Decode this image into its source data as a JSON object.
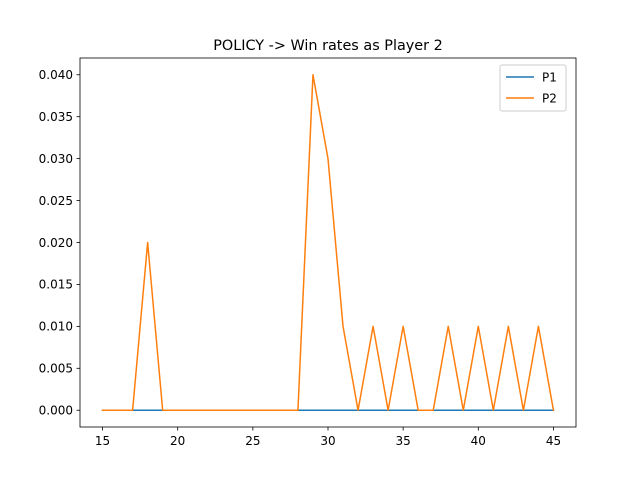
{
  "chart_data": {
    "type": "line",
    "title": "POLICY -> Win rates as Player 2",
    "xlabel": "",
    "ylabel": "",
    "xlim": [
      13.5,
      46.5
    ],
    "ylim": [
      -0.002,
      0.042
    ],
    "xticks": [
      15,
      20,
      25,
      30,
      35,
      40,
      45
    ],
    "yticks": [
      0.0,
      0.005,
      0.01,
      0.015,
      0.02,
      0.025,
      0.03,
      0.035,
      0.04
    ],
    "ytick_labels": [
      "0.000",
      "0.005",
      "0.010",
      "0.015",
      "0.020",
      "0.025",
      "0.030",
      "0.035",
      "0.040"
    ],
    "grid": false,
    "legend_position": "top-right",
    "x": [
      15,
      16,
      17,
      18,
      19,
      20,
      21,
      22,
      23,
      24,
      25,
      26,
      27,
      28,
      29,
      30,
      31,
      32,
      33,
      34,
      35,
      36,
      37,
      38,
      39,
      40,
      41,
      42,
      43,
      44,
      45
    ],
    "series": [
      {
        "name": "P1",
        "color": "#1f77b4",
        "values": [
          0,
          0,
          0,
          0,
          0,
          0,
          0,
          0,
          0,
          0,
          0,
          0,
          0,
          0,
          0,
          0,
          0,
          0,
          0,
          0,
          0,
          0,
          0,
          0,
          0,
          0,
          0,
          0,
          0,
          0,
          0
        ]
      },
      {
        "name": "P2",
        "color": "#ff7f0e",
        "values": [
          0,
          0,
          0,
          0.02,
          0,
          0,
          0,
          0,
          0,
          0,
          0,
          0,
          0,
          0,
          0.04,
          0.03,
          0.01,
          0,
          0.01,
          0,
          0.01,
          0,
          0,
          0.01,
          0,
          0.01,
          0,
          0.01,
          0,
          0.01,
          0
        ]
      }
    ]
  }
}
